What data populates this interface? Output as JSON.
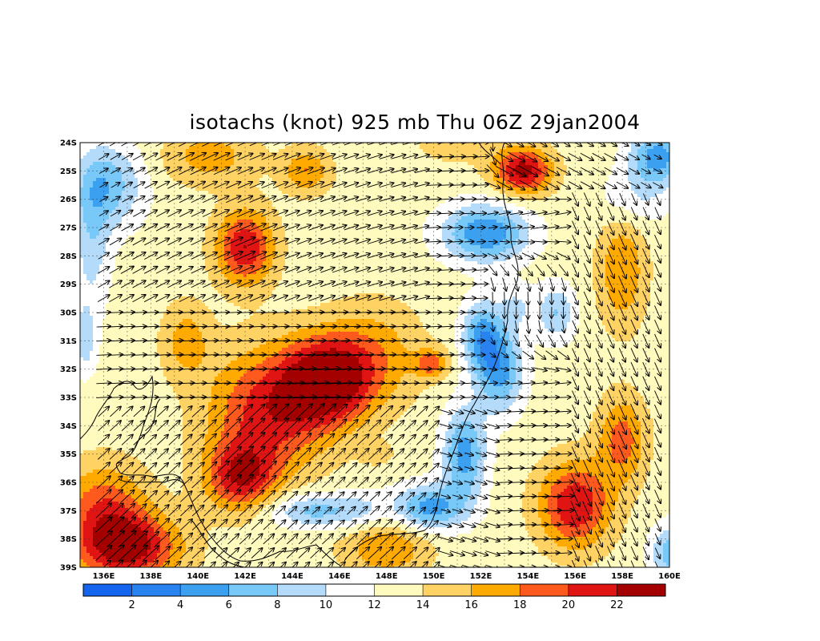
{
  "title": "isotachs (knot) 925 mb Thu 06Z 29jan2004",
  "lat_labels": [
    "24S",
    "25S",
    "26S",
    "27S",
    "28S",
    "29S",
    "30S",
    "31S",
    "32S",
    "33S",
    "34S",
    "35S",
    "36S",
    "37S",
    "38S",
    "39S"
  ],
  "lon_labels": [
    "136E",
    "138E",
    "140E",
    "142E",
    "144E",
    "146E",
    "148E",
    "150E",
    "152E",
    "154E",
    "156E",
    "158E",
    "160E"
  ],
  "colorbar": {
    "colors": [
      "#1464f0",
      "#2882f0",
      "#3ca0f0",
      "#78c8f8",
      "#b4dcfa",
      "#ffffff",
      "#fffabe",
      "#ffd264",
      "#ffaa00",
      "#ff5a1e",
      "#e11414",
      "#a50000"
    ],
    "labels": [
      "2",
      "4",
      "6",
      "8",
      "10",
      "12",
      "14",
      "16",
      "18",
      "20",
      "22"
    ]
  },
  "colors": {
    "speed_levels": [
      2,
      4,
      6,
      8,
      10,
      12,
      14,
      16,
      18,
      20,
      22
    ]
  }
}
